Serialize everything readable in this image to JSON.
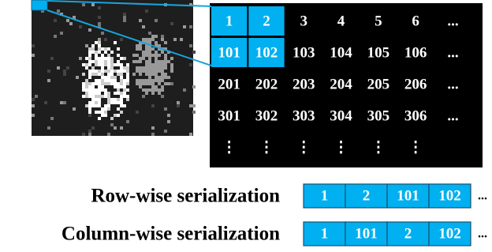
{
  "grid": {
    "rows": [
      [
        "1",
        "2",
        "3",
        "4",
        "5",
        "6",
        "..."
      ],
      [
        "101",
        "102",
        "103",
        "104",
        "105",
        "106",
        "..."
      ],
      [
        "201",
        "202",
        "203",
        "204",
        "205",
        "206",
        "..."
      ],
      [
        "301",
        "302",
        "303",
        "304",
        "305",
        "306",
        "..."
      ],
      [
        "⋮",
        "⋮",
        "⋮",
        "⋮",
        "⋮",
        "⋮"
      ]
    ]
  },
  "serialization": [
    {
      "label": "Row-wise serialization",
      "cells": [
        "1",
        "2",
        "101",
        "102"
      ],
      "more": "..."
    },
    {
      "label": "Column-wise serialization",
      "cells": [
        "1",
        "101",
        "2",
        "102"
      ],
      "more": "..."
    }
  ]
}
